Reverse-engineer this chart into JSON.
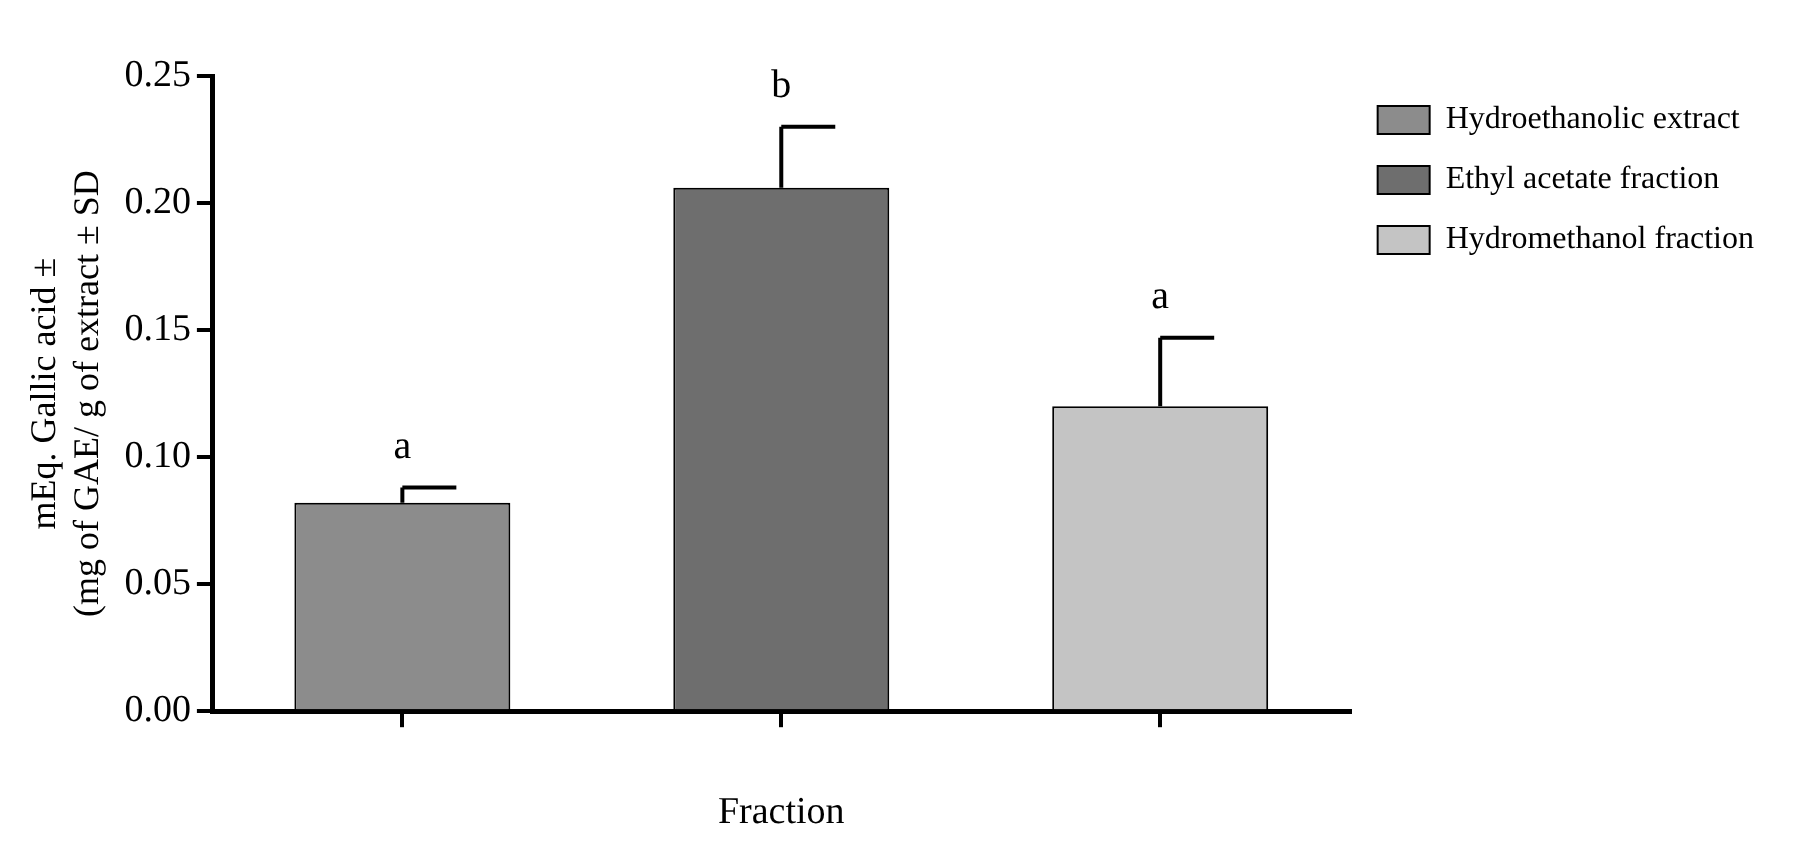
{
  "chart_data": {
    "type": "bar",
    "xlabel": "Fraction",
    "ylabel": "mEq. Gallic acid ±\n(mg of GAE/ g of extract ± SD",
    "categories": [
      null,
      null,
      null
    ],
    "series": [
      {
        "name": "Hydroethanolic extract",
        "color": "#8c8c8c",
        "values": [
          0.082,
          null,
          null
        ],
        "errors": [
          0.006,
          null,
          null
        ]
      },
      {
        "name": "Ethyl acetate fraction",
        "color": "#6e6e6e",
        "values": [
          null,
          0.206,
          null
        ],
        "errors": [
          null,
          0.024,
          null
        ]
      },
      {
        "name": "Hydromethanol fraction",
        "color": "#c4c4c4",
        "values": [
          null,
          null,
          0.12
        ],
        "errors": [
          null,
          null,
          0.027
        ]
      }
    ],
    "annotations": [
      {
        "text": "a",
        "y": 0.088
      },
      {
        "text": "b",
        "y": 0.23
      },
      {
        "text": "a",
        "y": 0.147
      }
    ],
    "ylim": [
      0,
      0.25
    ],
    "yticks": [
      {
        "value": 0,
        "label": "0.00"
      },
      {
        "value": 0.05,
        "label": "0.05"
      },
      {
        "value": 0.1,
        "label": "0.10"
      },
      {
        "value": 0.15,
        "label": "0.15"
      },
      {
        "value": 0.2,
        "label": "0.20"
      },
      {
        "value": 0.25,
        "label": "0.25"
      }
    ],
    "grid": false,
    "legend": "top right"
  }
}
